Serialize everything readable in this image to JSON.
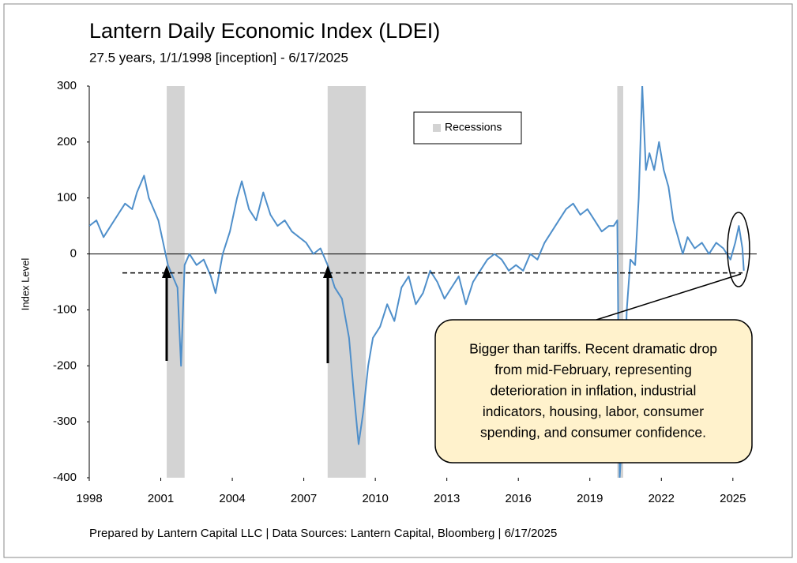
{
  "chart_data": {
    "type": "line",
    "title": "Lantern Daily Economic Index (LDEI)",
    "subtitle": "27.5 years, 1/1/1998 [inception] - 6/17/2025",
    "ylabel": "Index Level",
    "footer": "Prepared by Lantern Capital LLC | Data Sources: Lantern Capital, Bloomberg | 6/17/2025",
    "xlim": [
      1998,
      2026
    ],
    "xticks": [
      1998,
      2001,
      2004,
      2007,
      2010,
      2013,
      2016,
      2019,
      2022,
      2025
    ],
    "ylim": [
      -400,
      300
    ],
    "yticks": [
      -400,
      -300,
      -200,
      -100,
      0,
      100,
      200,
      300
    ],
    "recession_name": "Recessions",
    "recession_color": "#d3d3d3",
    "recessions": [
      [
        2001.25,
        2002.0
      ],
      [
        2008.0,
        2009.6
      ],
      [
        2020.15,
        2020.4
      ]
    ],
    "reference_line": -34,
    "annotation_lines": [
      "Bigger than tariffs. Recent dramatic drop",
      "from mid-February, representing",
      "deterioration in inflation, industrial",
      "indicators, housing, labor, consumer",
      "spending, and consumer confidence."
    ],
    "series": [
      {
        "name": "LDEI",
        "color": "#4f8fca",
        "x": [
          1998.0,
          1998.3,
          1998.6,
          1998.9,
          1999.2,
          1999.5,
          1999.8,
          2000.0,
          2000.3,
          2000.5,
          2000.7,
          2000.9,
          2001.1,
          2001.3,
          2001.5,
          2001.7,
          2001.85,
          2002.0,
          2002.2,
          2002.5,
          2002.8,
          2003.1,
          2003.3,
          2003.6,
          2003.9,
          2004.2,
          2004.4,
          2004.7,
          2005.0,
          2005.3,
          2005.6,
          2005.9,
          2006.2,
          2006.5,
          2006.8,
          2007.1,
          2007.4,
          2007.7,
          2008.0,
          2008.3,
          2008.6,
          2008.9,
          2009.1,
          2009.3,
          2009.5,
          2009.7,
          2009.9,
          2010.2,
          2010.5,
          2010.8,
          2011.1,
          2011.4,
          2011.7,
          2012.0,
          2012.3,
          2012.6,
          2012.9,
          2013.2,
          2013.5,
          2013.8,
          2014.1,
          2014.4,
          2014.7,
          2015.0,
          2015.3,
          2015.6,
          2015.9,
          2016.2,
          2016.5,
          2016.8,
          2017.1,
          2017.4,
          2017.7,
          2018.0,
          2018.3,
          2018.6,
          2018.9,
          2019.2,
          2019.5,
          2019.8,
          2020.0,
          2020.15,
          2020.25,
          2020.4,
          2020.55,
          2020.7,
          2020.9,
          2021.05,
          2021.2,
          2021.35,
          2021.5,
          2021.7,
          2021.9,
          2022.1,
          2022.3,
          2022.5,
          2022.7,
          2022.9,
          2023.1,
          2023.4,
          2023.7,
          2024.0,
          2024.3,
          2024.6,
          2024.9,
          2025.1,
          2025.25,
          2025.4,
          2025.46
        ],
        "values": [
          50,
          60,
          30,
          50,
          70,
          90,
          80,
          110,
          140,
          100,
          80,
          60,
          20,
          -20,
          -40,
          -60,
          -200,
          -20,
          0,
          -20,
          -10,
          -40,
          -70,
          0,
          40,
          100,
          130,
          80,
          60,
          110,
          70,
          50,
          60,
          40,
          30,
          20,
          0,
          10,
          -20,
          -60,
          -80,
          -150,
          -250,
          -340,
          -280,
          -200,
          -150,
          -130,
          -90,
          -120,
          -60,
          -40,
          -90,
          -70,
          -30,
          -50,
          -80,
          -60,
          -40,
          -90,
          -50,
          -30,
          -10,
          0,
          -10,
          -30,
          -20,
          -30,
          0,
          -10,
          20,
          40,
          60,
          80,
          90,
          70,
          80,
          60,
          40,
          50,
          50,
          60,
          -400,
          -300,
          -100,
          -10,
          -20,
          100,
          300,
          150,
          180,
          150,
          200,
          150,
          120,
          60,
          30,
          0,
          30,
          10,
          20,
          0,
          20,
          10,
          -10,
          20,
          50,
          10,
          -30
        ]
      }
    ]
  }
}
